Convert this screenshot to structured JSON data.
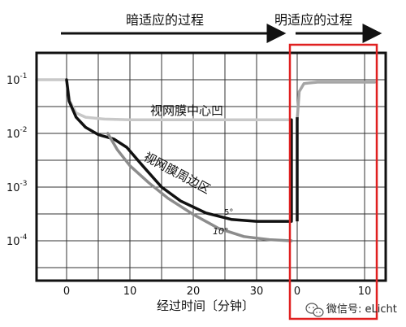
{
  "chart_data": {
    "type": "line",
    "phases": {
      "dark": "暗适应的过程",
      "light": "明适应的过程"
    },
    "xlabel": "经过时间〔分钟〕",
    "x_ticks_dark": [
      "0",
      "10",
      "20",
      "30"
    ],
    "x_ticks_light": [
      "0",
      "10"
    ],
    "y_ticks": [
      {
        "base": "10",
        "exp": "-1",
        "value": 0.1
      },
      {
        "base": "10",
        "exp": "-2",
        "value": 0.01
      },
      {
        "base": "10",
        "exp": "-3",
        "value": 0.001
      },
      {
        "base": "10",
        "exp": "-4",
        "value": 0.0001
      }
    ],
    "y_scale": "log",
    "grid": true,
    "series": [
      {
        "name": "视网膜中心凹",
        "color": "#c8c8c8",
        "points": [
          [
            -5,
            0.1
          ],
          [
            0,
            0.1
          ],
          [
            0.5,
            0.04
          ],
          [
            1.5,
            0.024
          ],
          [
            3,
            0.02
          ],
          [
            6,
            0.0185
          ],
          [
            10,
            0.018
          ],
          [
            20,
            0.018
          ],
          [
            35.5,
            0.018
          ]
        ]
      },
      {
        "name": "视网膜周边区",
        "sub_label": "5°",
        "color": "#111111",
        "points": [
          [
            0,
            0.1
          ],
          [
            0.4,
            0.04
          ],
          [
            1.5,
            0.02
          ],
          [
            3,
            0.013
          ],
          [
            5,
            0.0095
          ],
          [
            7.5,
            0.0078
          ],
          [
            9.5,
            0.0055
          ],
          [
            12,
            0.0025
          ],
          [
            15,
            0.001
          ],
          [
            18,
            0.00055
          ],
          [
            22,
            0.00033
          ],
          [
            26,
            0.00025
          ],
          [
            30,
            0.00023
          ],
          [
            35.5,
            0.00023
          ]
        ]
      },
      {
        "name": "",
        "sub_label": "10°",
        "color": "#8c8c8c",
        "points": [
          [
            6.5,
            0.01
          ],
          [
            8,
            0.005
          ],
          [
            10,
            0.0025
          ],
          [
            13,
            0.0012
          ],
          [
            16,
            0.00062
          ],
          [
            20,
            0.00031
          ],
          [
            24,
            0.00017
          ],
          [
            28,
            0.00012
          ],
          [
            32,
            0.000105
          ],
          [
            35.5,
            0.0001
          ]
        ]
      },
      {
        "name": "",
        "color": "#a5a5a5",
        "points": [
          [
            0,
            0.018
          ],
          [
            0.3,
            0.06
          ],
          [
            1,
            0.085
          ],
          [
            3,
            0.09
          ],
          [
            10,
            0.09
          ],
          [
            11.5,
            0.09
          ]
        ]
      }
    ],
    "highlight_color": "#e02020"
  },
  "watermark": {
    "icon": "wechat-icon",
    "text": "微信号: eLicht"
  }
}
